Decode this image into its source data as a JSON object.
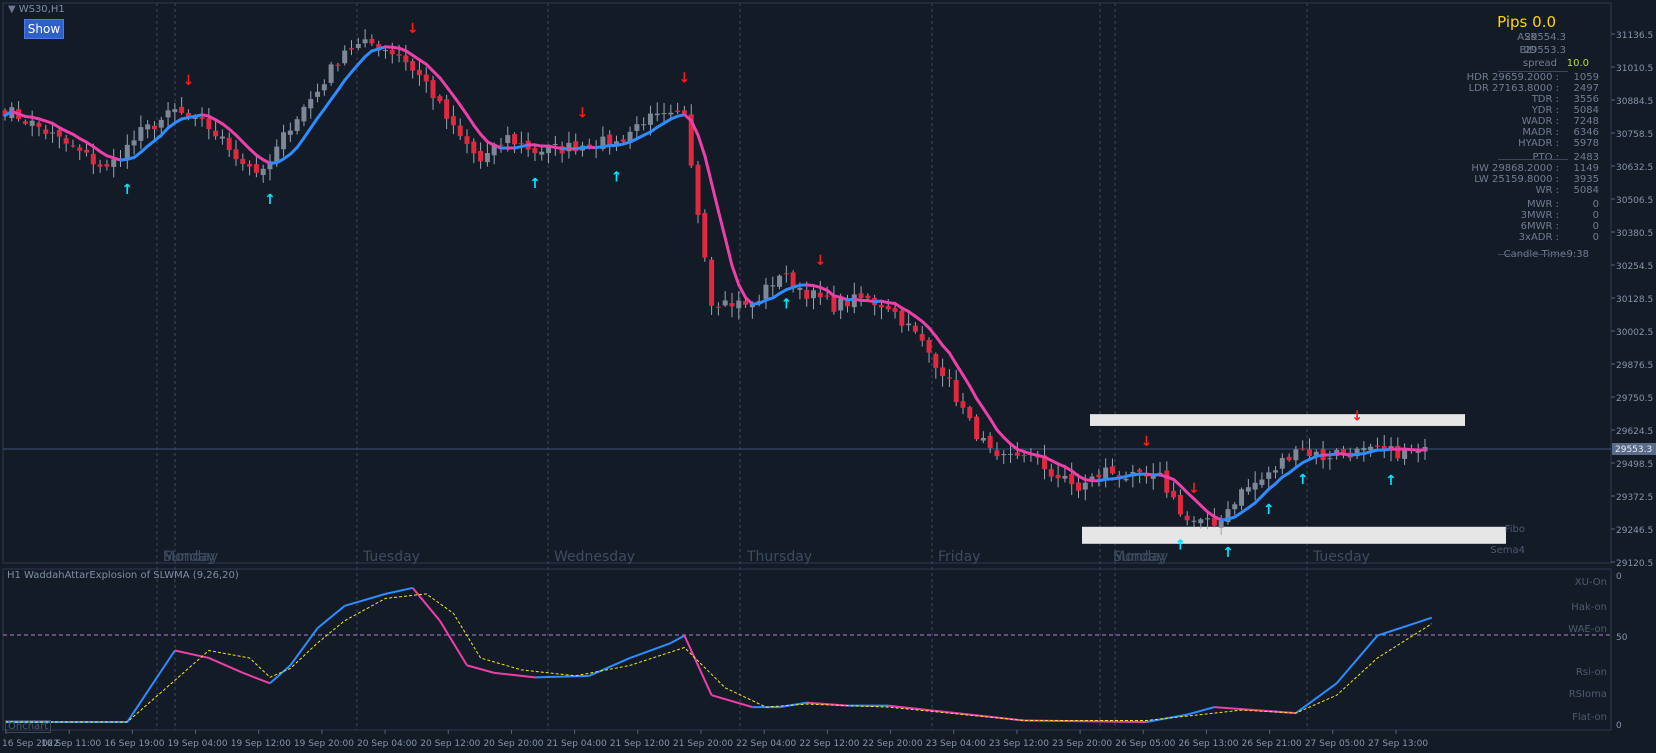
{
  "window": {
    "title": "WS30,H1",
    "show_button": "Show"
  },
  "pips": "Pips 0.0",
  "info_panel": {
    "ask": {
      "label": "ASK",
      "value": "29554.3"
    },
    "bid": {
      "label": "BID",
      "value": "29553.3"
    },
    "spread": {
      "label": "spread",
      "value": "10.0"
    },
    "rows": [
      {
        "label": "HDR 29659.2000 :",
        "value": "1059"
      },
      {
        "label": "LDR 27163.8000 :",
        "value": "2497"
      },
      {
        "label": "TDR :",
        "value": "3556"
      },
      {
        "label": "YDR :",
        "value": "5084"
      },
      {
        "label": "WADR :",
        "value": "7248"
      },
      {
        "label": "MADR :",
        "value": "6346"
      },
      {
        "label": "HYADR :",
        "value": "5978"
      },
      {
        "label": "PTO :",
        "value": "2483"
      },
      {
        "label": "HW 29868.2000 :",
        "value": "1149"
      },
      {
        "label": "LW 25159.8000 :",
        "value": "3935"
      },
      {
        "label": "WR :",
        "value": "5084"
      },
      {
        "label": "MWR :",
        "value": "0"
      },
      {
        "label": "3MWR :",
        "value": "0"
      },
      {
        "label": "6MWR :",
        "value": "0"
      },
      {
        "label": "3xADR :",
        "value": "0"
      }
    ],
    "candle_time": {
      "label": "Candle Time",
      "value": "9:38"
    }
  },
  "price_axis": {
    "ticks": [
      "31136.5",
      "31010.5",
      "30884.5",
      "30758.5",
      "30632.5",
      "30506.5",
      "30380.5",
      "30254.5",
      "30128.5",
      "30002.5",
      "29876.5",
      "29750.5",
      "29624.5",
      "29498.5",
      "29372.5",
      "29246.5",
      "29120.5"
    ],
    "current": "29553.3"
  },
  "day_labels": [
    "Monday",
    "Sunday",
    "Tuesday",
    "Wednesday",
    "Thursday",
    "Friday",
    "Monday",
    "Sunday",
    "Tuesday"
  ],
  "right_labels": [
    "Fibo",
    "Sema4"
  ],
  "subwindow": {
    "title": "H1 WaddahAttarExplosion of SLWMA (9,26,20)",
    "scale": [
      "0",
      "50",
      "0"
    ],
    "labels": [
      "XU-On",
      "Hak-on",
      "WAE-on",
      "Rsi-on",
      "RSIoma",
      "Flat-on"
    ],
    "onchart": "Onchart"
  },
  "time_axis": [
    "16 Sep 2022",
    "16 Sep 11:00",
    "16 Sep 19:00",
    "19 Sep 04:00",
    "19 Sep 12:00",
    "19 Sep 20:00",
    "20 Sep 04:00",
    "20 Sep 12:00",
    "20 Sep 20:00",
    "21 Sep 04:00",
    "21 Sep 12:00",
    "21 Sep 20:00",
    "22 Sep 04:00",
    "22 Sep 12:00",
    "22 Sep 20:00",
    "23 Sep 04:00",
    "23 Sep 12:00",
    "23 Sep 20:00",
    "26 Sep 05:00",
    "26 Sep 13:00",
    "26 Sep 21:00",
    "27 Sep 05:00",
    "27 Sep 13:00"
  ],
  "colors": {
    "bull": "#7c8798",
    "bear": "#e0283e",
    "ma_up": "#2f8cff",
    "ma_down": "#ee3fa9",
    "signal": "#f5e61a",
    "arrow_up": "#00e6ff",
    "arrow_down": "#ff1a1a",
    "zone": "#e6e6e6"
  },
  "chart_data": {
    "type": "candlestick",
    "ylim": [
      29100,
      31200
    ],
    "keys": [
      [
        0,
        30850
      ],
      [
        5,
        30780
      ],
      [
        10,
        30700
      ],
      [
        15,
        30620
      ],
      [
        20,
        30760
      ],
      [
        25,
        30840
      ],
      [
        30,
        30780
      ],
      [
        35,
        30650
      ],
      [
        38,
        30600
      ],
      [
        42,
        30790
      ],
      [
        46,
        30920
      ],
      [
        50,
        31080
      ],
      [
        54,
        31100
      ],
      [
        58,
        31060
      ],
      [
        62,
        30950
      ],
      [
        66,
        30770
      ],
      [
        70,
        30650
      ],
      [
        74,
        30740
      ],
      [
        78,
        30690
      ],
      [
        82,
        30700
      ],
      [
        86,
        30720
      ],
      [
        90,
        30720
      ],
      [
        94,
        30810
      ],
      [
        100,
        30820
      ],
      [
        104,
        30120
      ],
      [
        110,
        30100
      ],
      [
        114,
        30220
      ],
      [
        118,
        30150
      ],
      [
        122,
        30100
      ],
      [
        126,
        30125
      ],
      [
        130,
        30100
      ],
      [
        134,
        29990
      ],
      [
        138,
        29850
      ],
      [
        142,
        29650
      ],
      [
        146,
        29500
      ],
      [
        150,
        29540
      ],
      [
        154,
        29460
      ],
      [
        158,
        29400
      ],
      [
        162,
        29470
      ],
      [
        166,
        29440
      ],
      [
        170,
        29440
      ],
      [
        174,
        29280
      ],
      [
        178,
        29260
      ],
      [
        182,
        29390
      ],
      [
        186,
        29450
      ],
      [
        190,
        29560
      ],
      [
        194,
        29520
      ],
      [
        196,
        29540
      ]
    ],
    "signal_up": [
      18,
      39,
      78,
      90,
      115,
      173,
      180,
      186,
      191,
      204
    ],
    "signal_down": [
      27,
      60,
      85,
      100,
      120,
      168,
      175,
      199
    ],
    "zones": [
      {
        "from": 29640,
        "to": 29685
      },
      {
        "from": 29190,
        "to": 29255
      }
    ],
    "indicator": {
      "name": "WaddahAttarExplosion of SLWMA (9,26,20)",
      "ylim": [
        0,
        100
      ],
      "trend": [
        [
          0,
          2
        ],
        [
          18,
          2
        ],
        [
          25,
          50
        ],
        [
          30,
          45
        ],
        [
          35,
          35
        ],
        [
          39,
          28
        ],
        [
          42,
          40
        ],
        [
          46,
          65
        ],
        [
          50,
          80
        ],
        [
          56,
          88
        ],
        [
          60,
          92
        ],
        [
          64,
          70
        ],
        [
          68,
          40
        ],
        [
          72,
          35
        ],
        [
          78,
          32
        ],
        [
          86,
          33
        ],
        [
          92,
          45
        ],
        [
          98,
          55
        ],
        [
          100,
          60
        ],
        [
          104,
          20
        ],
        [
          110,
          12
        ],
        [
          114,
          12
        ],
        [
          118,
          15
        ],
        [
          124,
          13
        ],
        [
          130,
          13
        ],
        [
          150,
          3
        ],
        [
          168,
          2
        ],
        [
          174,
          7
        ],
        [
          178,
          12
        ],
        [
          184,
          10
        ],
        [
          190,
          8
        ],
        [
          196,
          28
        ],
        [
          202,
          60
        ],
        [
          210,
          72
        ]
      ],
      "signal": [
        [
          0,
          2
        ],
        [
          18,
          2
        ],
        [
          25,
          30
        ],
        [
          30,
          50
        ],
        [
          36,
          45
        ],
        [
          39,
          32
        ],
        [
          42,
          38
        ],
        [
          46,
          55
        ],
        [
          50,
          70
        ],
        [
          56,
          85
        ],
        [
          62,
          88
        ],
        [
          66,
          75
        ],
        [
          70,
          45
        ],
        [
          76,
          37
        ],
        [
          84,
          33
        ],
        [
          92,
          40
        ],
        [
          100,
          52
        ],
        [
          106,
          25
        ],
        [
          112,
          12
        ],
        [
          118,
          14
        ],
        [
          124,
          13
        ],
        [
          130,
          12
        ],
        [
          150,
          3
        ],
        [
          168,
          3
        ],
        [
          176,
          7
        ],
        [
          182,
          10
        ],
        [
          190,
          8
        ],
        [
          196,
          20
        ],
        [
          202,
          45
        ],
        [
          210,
          68
        ]
      ]
    }
  }
}
